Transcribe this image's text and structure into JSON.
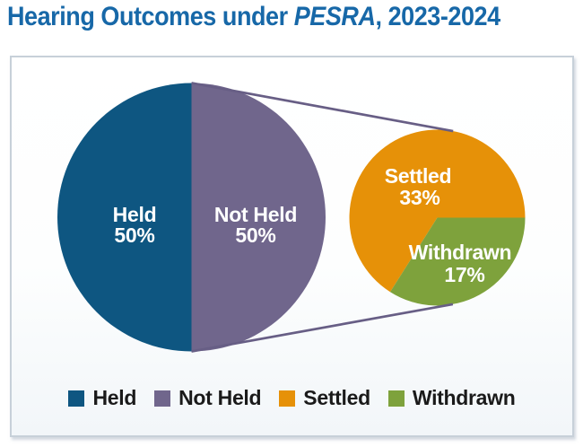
{
  "page": {
    "title_main": "Hearing Outcomes under ",
    "title_italic": "PESRA",
    "title_suffix": ", 2023-2024",
    "title_color": "#1768A8"
  },
  "chart_data": {
    "type": "pie",
    "variant": "pie-of-pie",
    "title": "Hearing Outcomes under PESRA, 2023-2024",
    "primary_pie": {
      "categories": [
        "Held",
        "Not Held"
      ],
      "values": [
        50,
        50
      ],
      "unit": "%"
    },
    "secondary_pie": {
      "categories": [
        "Settled",
        "Withdrawn"
      ],
      "values": [
        33,
        17
      ],
      "unit": "%",
      "expands": "Not Held"
    },
    "slice_labels": {
      "held": {
        "label": "Held",
        "value": "50%"
      },
      "not_held": {
        "label": "Not Held",
        "value": "50%"
      },
      "settled": {
        "label": "Settled",
        "value": "33%"
      },
      "withdrawn": {
        "label": "Withdrawn",
        "value": "17%"
      }
    },
    "colors": {
      "held": "#0E5681",
      "not_held": "#70668C",
      "settled": "#E69108",
      "withdrawn": "#7EA23C",
      "connector": "#675E85"
    },
    "legend_position": "bottom",
    "grid": false
  },
  "legend": {
    "items": [
      {
        "label": "Held",
        "color_key": "held"
      },
      {
        "label": "Not Held",
        "color_key": "not_held"
      },
      {
        "label": "Settled",
        "color_key": "settled"
      },
      {
        "label": "Withdrawn",
        "color_key": "withdrawn"
      }
    ]
  }
}
